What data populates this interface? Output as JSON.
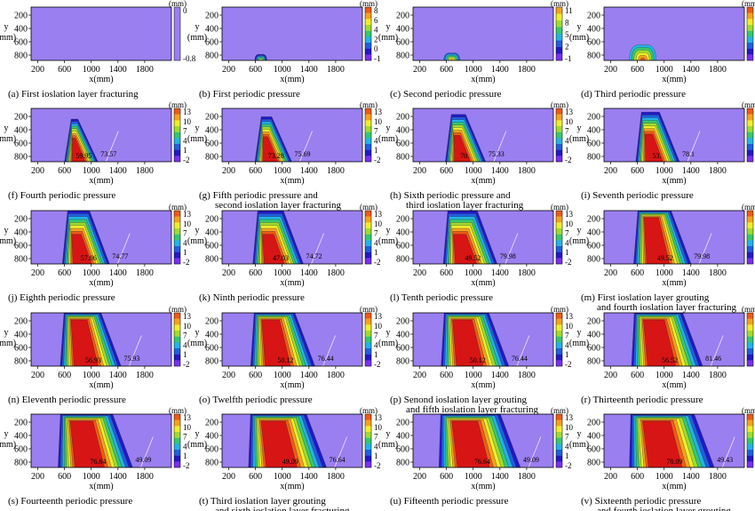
{
  "chart_data": {
    "type": "heatmap",
    "description_units": "mm",
    "x_axis": {
      "label": "x(mm)",
      "ticks": [
        "200",
        "600",
        "1000",
        "1400",
        "1800"
      ]
    },
    "y_axis": {
      "label": "y\n(mm)",
      "ticks": [
        "200",
        "400",
        "600",
        "800"
      ]
    },
    "panels": [
      {
        "caption": "(a)  First ioslation layer fracturing",
        "unit": "(mm)",
        "cbar": [
          "0",
          "-0.8"
        ],
        "stage": 0,
        "labels": []
      },
      {
        "caption": "(b)  First periodic pressure",
        "unit": "(mm)",
        "cbar": [
          "8",
          "6",
          "4",
          "2",
          "0",
          "-1"
        ],
        "stage": 1,
        "labels": []
      },
      {
        "caption": "(c)  Second periodic pressure",
        "unit": "(mm)",
        "cbar": [
          "11",
          "8",
          "5",
          "2",
          "-1"
        ],
        "stage": 2,
        "labels": []
      },
      {
        "caption": "(d)  Third periodic pressure",
        "unit": "(mm)",
        "cbar": [
          "14",
          "11",
          "8",
          "5",
          "2",
          "-1"
        ],
        "stage": 3,
        "labels": []
      },
      {
        "caption": "(f)  Fourth periodic pressure",
        "unit": "(mm)",
        "cbar": [
          "13",
          "10",
          "7",
          "4",
          "1",
          "-2"
        ],
        "stage": 4,
        "labels": [
          "59.95",
          "73.57"
        ]
      },
      {
        "caption": "(g)  Fifth periodic pressure and\nsecond ioslation layer fracturing",
        "unit": "(mm)",
        "cbar": [
          "13",
          "10",
          "7",
          "4",
          "1",
          "-2"
        ],
        "stage": 5,
        "labels": [
          "73.28",
          "75.69"
        ]
      },
      {
        "caption": "(h)  Sixth periodic pressure and\nthird ioslation layer fracturing",
        "unit": "(mm)",
        "cbar": [
          "13",
          "10",
          "7",
          "4",
          "1",
          "-2"
        ],
        "stage": 6,
        "labels": [
          "70.",
          "75.33"
        ]
      },
      {
        "caption": "(i)  Seventh periodic pressure",
        "unit": "(mm)",
        "cbar": [
          "13",
          "10",
          "7",
          "4",
          "1",
          "-2"
        ],
        "stage": 7,
        "labels": [
          "53.",
          "78.1"
        ]
      },
      {
        "caption": "(j)  Eighth periodic pressure",
        "unit": "(mm)",
        "cbar": [
          "13",
          "10",
          "7",
          "4",
          "1",
          "-2"
        ],
        "stage": 8,
        "labels": [
          "57.06",
          "74.77"
        ]
      },
      {
        "caption": "(k)  Ninth periodic pressure",
        "unit": "(mm)",
        "cbar": [
          "13",
          "10",
          "7",
          "4",
          "1",
          "-2"
        ],
        "stage": 9,
        "labels": [
          "47.03",
          "74.72"
        ]
      },
      {
        "caption": "(l)  Tenth periodic pressure",
        "unit": "(mm)",
        "cbar": [
          "13",
          "10",
          "7",
          "4",
          "1",
          "-2"
        ],
        "stage": 10,
        "labels": [
          "49.52",
          "79.98"
        ]
      },
      {
        "caption": "(m)  First ioslation layer grouting\nand fourth ioslation layer fracturing",
        "unit": "(mm)",
        "cbar": [
          "13",
          "10",
          "7",
          "4",
          "1",
          "-2"
        ],
        "stage": 11,
        "labels": [
          "49.52",
          "79.98"
        ]
      },
      {
        "caption": "(n)  Eleventh periodic pressure",
        "unit": "(mm)",
        "cbar": [
          "13",
          "10",
          "7",
          "4",
          "1",
          "-2"
        ],
        "stage": 12,
        "labels": [
          "56.93",
          "75.93"
        ]
      },
      {
        "caption": "(o)  Twelfth periodic pressure",
        "unit": "(mm)",
        "cbar": [
          "13",
          "10",
          "7",
          "4",
          "1",
          "-2"
        ],
        "stage": 13,
        "labels": [
          "50.12",
          "76.44"
        ]
      },
      {
        "caption": "(p)  Senond ioslation layer grouting\nand fifth ioslation layer fracturing",
        "unit": "(mm)",
        "cbar": [
          "13",
          "10",
          "7",
          "4",
          "1",
          "-2"
        ],
        "stage": 14,
        "labels": [
          "50.12",
          "76.44"
        ]
      },
      {
        "caption": "(r)  Thirteenth periodic pressure",
        "unit": "(mm)",
        "cbar": [
          "13",
          "10",
          "7",
          "4",
          "1",
          "-2"
        ],
        "stage": 15,
        "labels": [
          "56.52",
          "81.46"
        ]
      },
      {
        "caption": "(s)  Fourteenth periodic pressure",
        "unit": "(mm)",
        "cbar": [
          "13",
          "10",
          "7",
          "4",
          "1",
          "-2"
        ],
        "stage": 16,
        "labels": [
          "76.64",
          "49.09"
        ]
      },
      {
        "caption": "(t)  Third ioslation layer grouting\nand sixth ioslation layer fracturing",
        "unit": "(mm)",
        "cbar": [
          "13",
          "10",
          "7",
          "4",
          "1",
          "-2"
        ],
        "stage": 17,
        "labels": [
          "49.09",
          "76.64"
        ]
      },
      {
        "caption": "(u)  Fifteenth periodic pressure",
        "unit": "(mm)",
        "cbar": [
          "13",
          "10",
          "7",
          "4",
          "1",
          "-2"
        ],
        "stage": 18,
        "labels": [
          "76.64",
          "49.09"
        ]
      },
      {
        "caption": "(v)  Sixteenth periodic pressure\nand fourth ioslation layer grouting",
        "unit": "(mm)",
        "cbar": [
          "13",
          "10",
          "7",
          "4",
          "1",
          "-2"
        ],
        "stage": 19,
        "labels": [
          "78.09",
          "49.43"
        ]
      }
    ],
    "colors": {
      "background": "#9a7ff0",
      "scale": [
        "#7a2ff0",
        "#2318c8",
        "#1f5fe0",
        "#23b3e6",
        "#35c870",
        "#9fdc30",
        "#f0ee2a",
        "#f6a21e",
        "#ee5a18",
        "#d81515"
      ]
    }
  }
}
